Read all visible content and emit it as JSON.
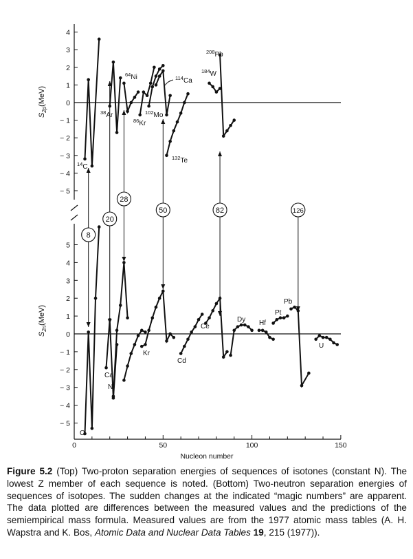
{
  "chart_data": [
    {
      "panel": "top",
      "type": "line",
      "ylabel": "S2p(MeV)",
      "ylabel_main": "S",
      "ylabel_sub": "2p",
      "ylabel_unit": "(MeV)",
      "xlim": [
        0,
        150
      ],
      "ylim": [
        -5.6,
        4.6
      ],
      "yticks": [
        -5,
        -4,
        -3,
        -2,
        -1,
        0,
        1,
        2,
        3,
        4
      ],
      "zero_line": true,
      "series": [
        {
          "name": "14C",
          "mass": "14",
          "el": "C",
          "x": [
            6,
            8,
            10,
            14
          ],
          "y": [
            -3.2,
            1.3,
            -3.6,
            3.6
          ]
        },
        {
          "name": "38Ar",
          "mass": "38",
          "el": "Ar",
          "x": [
            20,
            22,
            24,
            26
          ],
          "y": [
            -0.2,
            2.3,
            -1.7,
            1.4
          ]
        },
        {
          "name": "64Ni",
          "mass": "64",
          "el": "Ni",
          "x": [
            28,
            30,
            32,
            34,
            36
          ],
          "y": [
            1.1,
            -0.5,
            0.0,
            0.3,
            0.6
          ]
        },
        {
          "name": "86Kr",
          "mass": "86",
          "el": "Kr",
          "x": [
            37,
            39,
            41,
            43,
            45
          ],
          "y": [
            -0.7,
            0.6,
            0.4,
            1.1,
            2.0
          ]
        },
        {
          "name": "102Mo",
          "mass": "102",
          "el": "Mo",
          "x": [
            42,
            44,
            46,
            48,
            50
          ],
          "y": [
            -0.2,
            0.9,
            1.5,
            1.9,
            2.1
          ]
        },
        {
          "name": "114Ca",
          "mass": "114",
          "el": "Ca",
          "x": [
            46,
            48,
            50,
            52,
            54
          ],
          "y": [
            1.0,
            1.5,
            1.8,
            -0.7,
            0.4
          ]
        },
        {
          "name": "132Te",
          "mass": "132",
          "el": "Te",
          "x": [
            52,
            54,
            56,
            58,
            60,
            62,
            64
          ],
          "y": [
            -3.0,
            -2.2,
            -1.6,
            -1.1,
            -0.6,
            0.0,
            0.5
          ]
        },
        {
          "name": "184W",
          "mass": "184",
          "el": "W",
          "x": [
            76,
            78,
            80,
            82
          ],
          "y": [
            1.1,
            0.9,
            0.6,
            0.8
          ]
        },
        {
          "name": "208Pb",
          "mass": "208",
          "el": "Pb",
          "x": [
            82,
            84,
            86,
            88,
            90
          ],
          "y": [
            2.7,
            -1.9,
            -1.6,
            -1.3,
            -1.0
          ]
        }
      ]
    },
    {
      "panel": "bottom",
      "type": "line",
      "xlabel": "Nucleon number",
      "ylabel": "S2n(MeV)",
      "ylabel_main": "S",
      "ylabel_sub": "2n",
      "ylabel_unit": "(MeV)",
      "xlim": [
        0,
        150
      ],
      "ylim": [
        -5.9,
        6.2
      ],
      "yticks": [
        -5,
        -4,
        -3,
        -2,
        -1,
        0,
        1,
        2,
        3,
        4,
        5
      ],
      "xticks": [
        0,
        50,
        100,
        150
      ],
      "zero_line": true,
      "series": [
        {
          "name": "O",
          "x": [
            6,
            8,
            10,
            12,
            14
          ],
          "y": [
            -5.6,
            0.1,
            -5.3,
            2.0,
            6.0
          ]
        },
        {
          "name": "Ca",
          "x": [
            18,
            20,
            22,
            24
          ],
          "y": [
            -1.9,
            0.8,
            -3.6,
            -0.6
          ]
        },
        {
          "name": "Ni",
          "x": [
            22,
            24,
            26,
            28,
            30
          ],
          "y": [
            -3.5,
            0.2,
            1.6,
            4.0,
            0.9
          ]
        },
        {
          "name": "Ni",
          "x": [
            28,
            30,
            32,
            34,
            36,
            38,
            40
          ],
          "y": [
            -2.6,
            -1.8,
            -1.1,
            -0.6,
            -0.1,
            0.2,
            0.1
          ]
        },
        {
          "name": "Kr",
          "x": [
            38,
            40,
            42,
            44,
            46,
            48,
            50,
            52,
            54,
            56
          ],
          "y": [
            -0.7,
            -0.6,
            0.2,
            0.9,
            1.5,
            2.0,
            2.4,
            -0.4,
            0.0,
            -0.2
          ]
        },
        {
          "name": "Cd",
          "x": [
            60,
            62,
            64,
            66,
            68,
            70,
            72
          ],
          "y": [
            -1.1,
            -0.7,
            -0.3,
            0.1,
            0.4,
            0.8,
            1.1
          ]
        },
        {
          "name": "Ce",
          "x": [
            74,
            76,
            78,
            80,
            82,
            84,
            86
          ],
          "y": [
            0.6,
            0.9,
            1.3,
            1.7,
            2.0,
            -1.3,
            -1.0
          ]
        },
        {
          "name": "Dy",
          "x": [
            88,
            90,
            92,
            94,
            96,
            98,
            100
          ],
          "y": [
            -1.2,
            0.2,
            0.4,
            0.5,
            0.5,
            0.4,
            0.2
          ]
        },
        {
          "name": "Hf",
          "x": [
            104,
            106,
            108,
            110,
            112
          ],
          "y": [
            0.2,
            0.2,
            0.1,
            -0.2,
            -0.3
          ]
        },
        {
          "name": "Pt",
          "x": [
            112,
            114,
            116,
            118,
            120
          ],
          "y": [
            0.6,
            0.8,
            0.9,
            0.9,
            1.0
          ]
        },
        {
          "name": "Pb",
          "x": [
            122,
            124,
            126,
            128,
            132
          ],
          "y": [
            1.4,
            1.5,
            1.3,
            -2.9,
            -2.2
          ]
        },
        {
          "name": "U",
          "x": [
            136,
            138,
            140,
            142,
            144,
            146,
            148
          ],
          "y": [
            -0.3,
            -0.1,
            -0.2,
            -0.2,
            -0.3,
            -0.5,
            -0.6
          ]
        }
      ]
    }
  ],
  "magic_numbers": [
    {
      "label": "8",
      "n": 8
    },
    {
      "label": "20",
      "n": 20
    },
    {
      "label": "28",
      "n": 28
    },
    {
      "label": "50",
      "n": 50
    },
    {
      "label": "82",
      "n": 82
    },
    {
      "label": "126",
      "n": 126
    }
  ],
  "caption": {
    "label": "Figure 5.2",
    "text": " (Top) Two-proton separation energies of sequences of isotones (constant N). The lowest Z member of each sequence is noted. (Bottom) Two-neutron separation energies of sequences of isotopes. The sudden changes at the indicated “magic numbers” are apparent. The data plotted are differences between the measured values and the predictions of the semiempirical mass formula. Measured values are from the 1977 atomic mass tables (A. H. Wapstra and K. Bos, ",
    "journal": "Atomic Data and Nuclear Data Tables",
    "volume": " 19",
    "tail": ", 215 (1977))."
  }
}
